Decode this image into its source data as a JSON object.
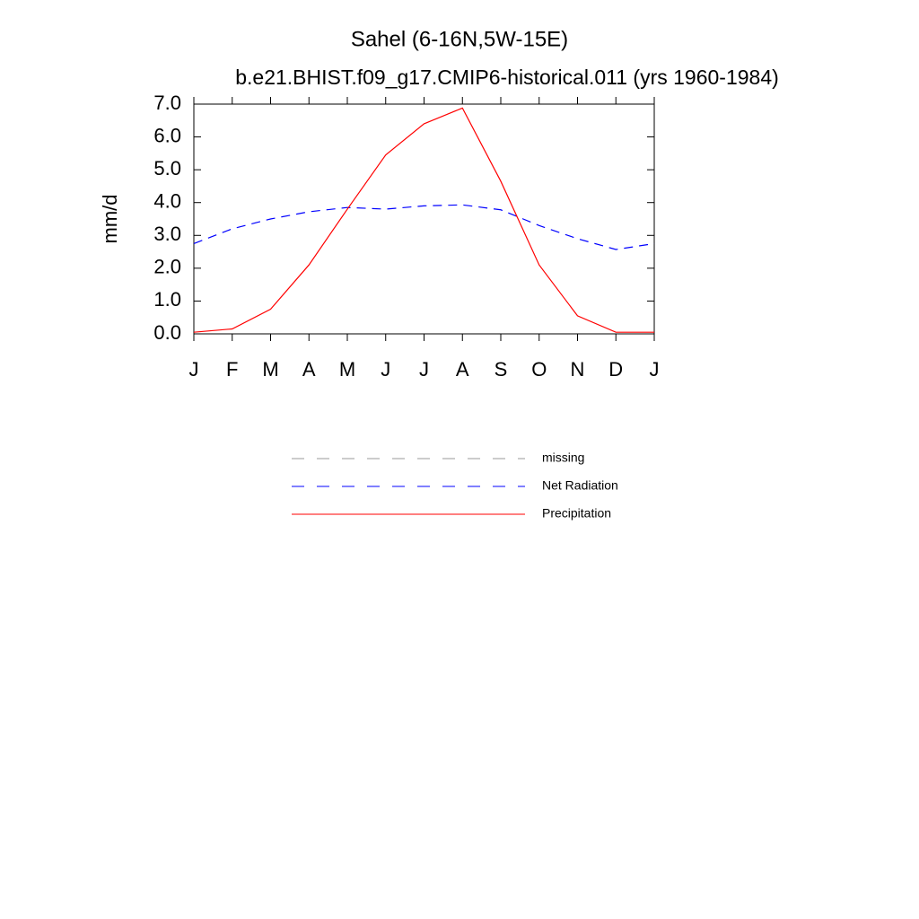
{
  "chart_data": {
    "type": "line",
    "title": "Sahel (6-16N,5W-15E)",
    "subtitle": "b.e21.BHIST.f09_g17.CMIP6-historical.011 (yrs 1960-1984)",
    "y_label": "mm/d",
    "categories": [
      "J",
      "F",
      "M",
      "A",
      "M",
      "J",
      "J",
      "A",
      "S",
      "O",
      "N",
      "D",
      "J"
    ],
    "series": [
      {
        "name": "missing",
        "color": "#999999",
        "dashed": true,
        "values": [
          null,
          null,
          null,
          null,
          null,
          null,
          null,
          null,
          null,
          null,
          null,
          null,
          null
        ]
      },
      {
        "name": "Net Radiation",
        "color": "#0000ff",
        "dashed": true,
        "values": [
          2.75,
          3.2,
          3.5,
          3.72,
          3.85,
          3.8,
          3.9,
          3.93,
          3.78,
          3.3,
          2.9,
          2.57,
          2.75
        ]
      },
      {
        "name": "Precipitation",
        "color": "#ff0000",
        "dashed": false,
        "values": [
          0.05,
          0.15,
          0.75,
          2.1,
          3.8,
          5.45,
          6.4,
          6.88,
          4.65,
          2.1,
          0.55,
          0.05,
          0.05
        ]
      }
    ],
    "ylim": [
      0,
      7
    ],
    "yticks": [
      {
        "value": 0,
        "label": "0.0"
      },
      {
        "value": 1,
        "label": "1.0"
      },
      {
        "value": 2,
        "label": "2.0"
      },
      {
        "value": 3,
        "label": "3.0"
      },
      {
        "value": 4,
        "label": "4.0"
      },
      {
        "value": 5,
        "label": "5.0"
      },
      {
        "value": 6,
        "label": "6.0"
      },
      {
        "value": 7,
        "label": "7.0"
      }
    ],
    "grid": false
  }
}
